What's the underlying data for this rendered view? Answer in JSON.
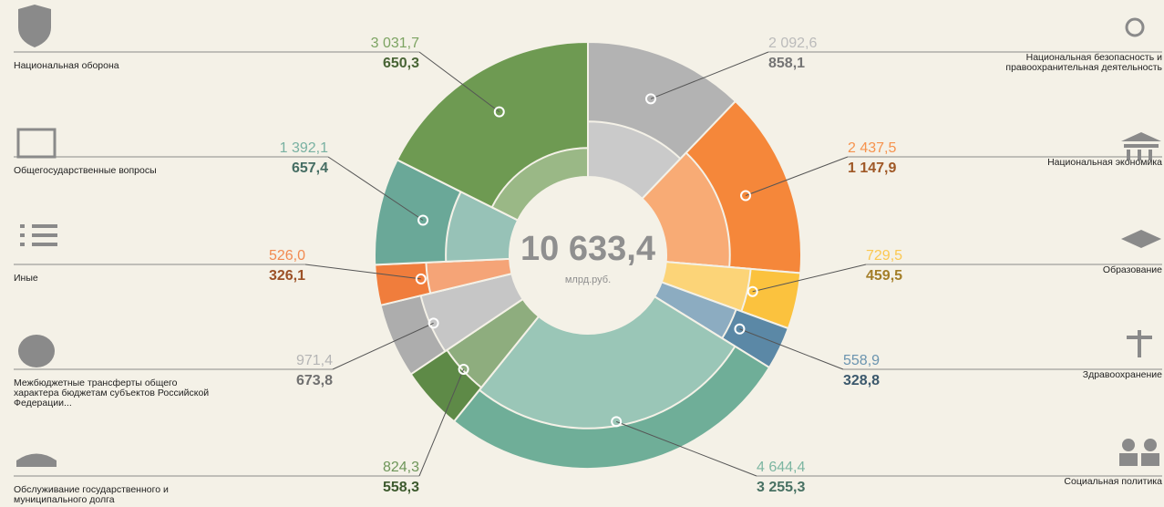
{
  "chart_data": {
    "type": "donut",
    "total": "10 633,4",
    "total_unit": "млрд.руб.",
    "categories": [
      "Национальная безопасность и правоохранительная деятельность",
      "Национальная экономика",
      "Образование",
      "Здравоохранение",
      "Социальная политика",
      "Обслуживание государственного и муниципального долга",
      "Межбюджетные трансферты общего характера бюджетам субъектов Российской Федерации...",
      "Иные",
      "Общегосударственные вопросы",
      "Национальная оборона"
    ],
    "colors": [
      "#b3b3b3",
      "#f5873a",
      "#fbc23e",
      "#5b88a6",
      "#6fae98",
      "#5e8a47",
      "#adadad",
      "#f07d3c",
      "#6aa898",
      "#6e9a52"
    ],
    "series": [
      {
        "values": [
          2092.6,
          2437.5,
          729.5,
          558.9,
          4644.4,
          824.3,
          971.4,
          526.0,
          1392.1,
          3031.7
        ],
        "value_labels": [
          "2 092,6",
          "2 437,5",
          "729,5",
          "558,9",
          "4 644,4",
          "824,3",
          "971,4",
          "526,0",
          "1 392,1",
          "3 031,7"
        ]
      },
      {
        "values": [
          858.1,
          1147.9,
          459.5,
          328.8,
          3255.3,
          558.3,
          673.8,
          326.1,
          657.4,
          650.3
        ],
        "value_labels": [
          "858,1",
          "1 147,9",
          "459,5",
          "328,8",
          "3 255,3",
          "558,3",
          "673,8",
          "326,1",
          "657,4",
          "650,3"
        ]
      }
    ]
  }
}
